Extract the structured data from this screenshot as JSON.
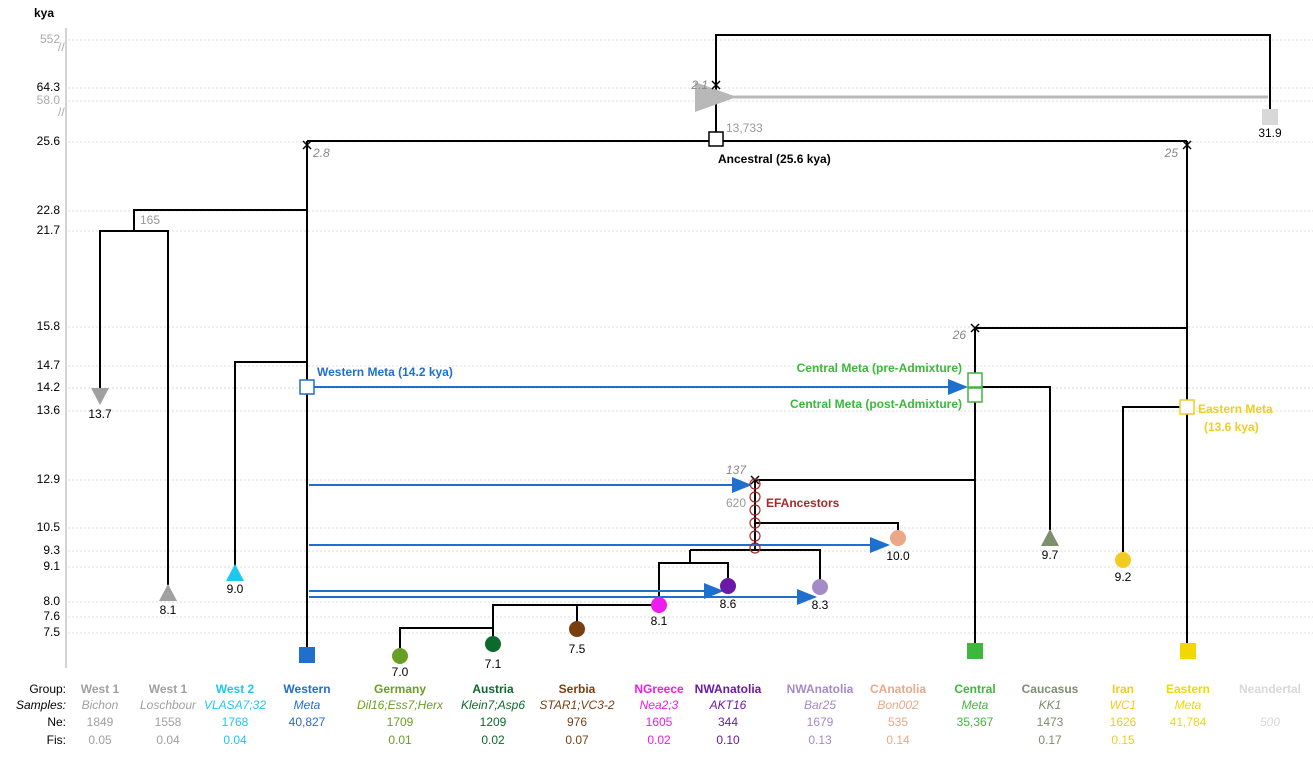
{
  "axis": {
    "title": "kya",
    "ticks": [
      "552",
      "64.3",
      "58.0",
      "25.6",
      "22.8",
      "21.7",
      "15.8",
      "14.7",
      "14.2",
      "13.6",
      "12.9",
      "10.5",
      "9.3",
      "9.1",
      "8.0",
      "7.6",
      "7.5"
    ]
  },
  "row_labels": [
    "Group:",
    "Samples:",
    "Ne:",
    "Fis:"
  ],
  "groups": [
    {
      "name": "West 1",
      "samples": "Bichon",
      "ne": "1849",
      "fis": "0.05",
      "color": "#a0a0a0",
      "marker": "13.7"
    },
    {
      "name": "West 1",
      "samples": "Loschbour",
      "ne": "1558",
      "fis": "0.04",
      "color": "#a0a0a0",
      "marker": "8.1"
    },
    {
      "name": "West 2",
      "samples": "VLASA7;32",
      "ne": "1768",
      "fis": "0.04",
      "color": "#1ec8ec",
      "marker": "9.0"
    },
    {
      "name": "Western",
      "samples": "Meta",
      "ne": "40,827",
      "color": "#1f6fcf"
    },
    {
      "name": "Germany",
      "samples": "Dil16;Ess7;Herx",
      "ne": "1709",
      "fis": "0.01",
      "color": "#6a9e24",
      "marker": "7.0"
    },
    {
      "name": "Austria",
      "samples": "Klein7;Asp6",
      "ne": "1209",
      "fis": "0.02",
      "color": "#0b6a2c",
      "marker": "7.1"
    },
    {
      "name": "Serbia",
      "samples": "STAR1;VC3-2",
      "ne": "976",
      "fis": "0.07",
      "color": "#7a3f10",
      "marker": "7.5"
    },
    {
      "name": "NGreece",
      "samples": "Nea2;3",
      "ne": "1605",
      "fis": "0.02",
      "color": "#ee1aee",
      "marker": "8.1"
    },
    {
      "name": "NWAnatolia",
      "samples": "AKT16",
      "ne": "344",
      "fis": "0.10",
      "color": "#6a1aa6",
      "marker": "8.6"
    },
    {
      "name": "NWAnatolia",
      "samples": "Bar25",
      "ne": "1679",
      "fis": "0.13",
      "color": "#a58ac8",
      "marker": "8.3"
    },
    {
      "name": "CAnatolia",
      "samples": "Bon002",
      "ne": "535",
      "fis": "0.14",
      "color": "#eaa888",
      "marker": "10.0"
    },
    {
      "name": "Central",
      "samples": "Meta",
      "ne": "35,367",
      "color": "#3cb83c"
    },
    {
      "name": "Caucasus",
      "samples": "KK1",
      "ne": "1473",
      "fis": "0.17",
      "color": "#7d8f6e",
      "marker": "9.7"
    },
    {
      "name": "Iran",
      "samples": "WC1",
      "ne": "1626",
      "fis": "0.15",
      "color": "#f2cc22",
      "marker": "9.2"
    },
    {
      "name": "Eastern",
      "samples": "Meta",
      "ne": "41,784",
      "color": "#f2d800"
    },
    {
      "name": "Neandertal",
      "ne": "500",
      "color": "#d8d8d8",
      "marker": "31.9"
    }
  ],
  "annotations": [
    {
      "text": "Ancestral (25.6 kya)",
      "color": "#000000"
    },
    {
      "text": "13,733",
      "color": "#999999"
    },
    {
      "text": "2.1",
      "color": "#888888"
    },
    {
      "text": "2.8",
      "color": "#888888"
    },
    {
      "text": "25",
      "color": "#888888"
    },
    {
      "text": "165",
      "color": "#999999"
    },
    {
      "text": "Western Meta (14.2 kya)",
      "color": "#1f6fcf"
    },
    {
      "text": "Central Meta (pre-Admixture)",
      "color": "#3cb83c"
    },
    {
      "text": "Central Meta (post-Admixture)",
      "color": "#3cb83c"
    },
    {
      "text": "Eastern Meta",
      "color": "#f2cc22"
    },
    {
      "text": "(13.6 kya)",
      "color": "#f2cc22"
    },
    {
      "text": "26",
      "color": "#888888"
    },
    {
      "text": "137",
      "color": "#888888"
    },
    {
      "text": "620",
      "color": "#999999"
    },
    {
      "text": "EFAncestors",
      "color": "#a52a2a"
    }
  ]
}
